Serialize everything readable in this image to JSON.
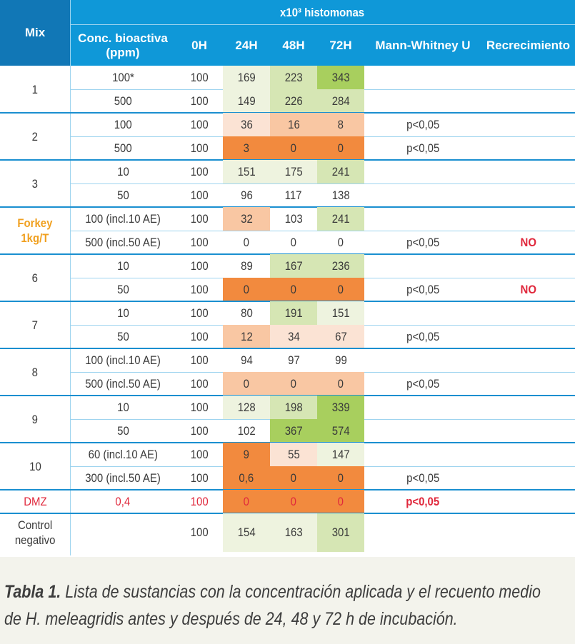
{
  "header": {
    "group_title": "x10³ histomonas",
    "columns": [
      "Mix",
      "Conc. bioactiva\n(ppm)",
      "0H",
      "24H",
      "48H",
      "72H",
      "Mann-Whitney U",
      "Recrecimiento"
    ]
  },
  "colors": {
    "header_blue": "#0f98d8",
    "header_dark_blue": "#1177b6",
    "green_light": "#eef3df",
    "green_mid": "#d6e6b4",
    "green_strong": "#a8cf5e",
    "orange_light": "#fbe3d4",
    "orange_mid": "#f9c7a3",
    "orange_strong": "#f28a3e",
    "red_text": "#e0283c",
    "orange_text": "#f0a020"
  },
  "groups": [
    {
      "mix": "1",
      "rows": [
        {
          "conc": "100*",
          "h0": "100",
          "h24": "169",
          "h48": "223",
          "h72": "343",
          "mw": "",
          "rec": ""
        },
        {
          "conc": "500",
          "h0": "100",
          "h24": "149",
          "h48": "226",
          "h72": "284",
          "mw": "",
          "rec": ""
        }
      ]
    },
    {
      "mix": "2",
      "rows": [
        {
          "conc": "100",
          "h0": "100",
          "h24": "36",
          "h48": "16",
          "h72": "8",
          "mw": "p<0,05",
          "rec": ""
        },
        {
          "conc": "500",
          "h0": "100",
          "h24": "3",
          "h48": "0",
          "h72": "0",
          "mw": "p<0,05",
          "rec": ""
        }
      ]
    },
    {
      "mix": "3",
      "rows": [
        {
          "conc": "10",
          "h0": "100",
          "h24": "151",
          "h48": "175",
          "h72": "241",
          "mw": "",
          "rec": ""
        },
        {
          "conc": "50",
          "h0": "100",
          "h24": "96",
          "h48": "117",
          "h72": "138",
          "mw": "",
          "rec": ""
        }
      ]
    },
    {
      "mix": "Forkey\n1kg/T",
      "rows": [
        {
          "conc": "100 (incl.10 AE)",
          "h0": "100",
          "h24": "32",
          "h48": "103",
          "h72": "241",
          "mw": "",
          "rec": ""
        },
        {
          "conc": "500 (incl.50 AE)",
          "h0": "100",
          "h24": "0",
          "h48": "0",
          "h72": "0",
          "mw": "p<0,05",
          "rec": "NO"
        }
      ]
    },
    {
      "mix": "6",
      "rows": [
        {
          "conc": "10",
          "h0": "100",
          "h24": "89",
          "h48": "167",
          "h72": "236",
          "mw": "",
          "rec": ""
        },
        {
          "conc": "50",
          "h0": "100",
          "h24": "0",
          "h48": "0",
          "h72": "0",
          "mw": "p<0,05",
          "rec": "NO"
        }
      ]
    },
    {
      "mix": "7",
      "rows": [
        {
          "conc": "10",
          "h0": "100",
          "h24": "80",
          "h48": "191",
          "h72": "151",
          "mw": "",
          "rec": ""
        },
        {
          "conc": "50",
          "h0": "100",
          "h24": "12",
          "h48": "34",
          "h72": "67",
          "mw": "p<0,05",
          "rec": ""
        }
      ]
    },
    {
      "mix": "8",
      "rows": [
        {
          "conc": "100 (incl.10 AE)",
          "h0": "100",
          "h24": "94",
          "h48": "97",
          "h72": "99",
          "mw": "",
          "rec": ""
        },
        {
          "conc": "500 (incl.50 AE)",
          "h0": "100",
          "h24": "0",
          "h48": "0",
          "h72": "0",
          "mw": "p<0,05",
          "rec": ""
        }
      ]
    },
    {
      "mix": "9",
      "rows": [
        {
          "conc": "10",
          "h0": "100",
          "h24": "128",
          "h48": "198",
          "h72": "339",
          "mw": "",
          "rec": ""
        },
        {
          "conc": "50",
          "h0": "100",
          "h24": "102",
          "h48": "367",
          "h72": "574",
          "mw": "",
          "rec": ""
        }
      ]
    },
    {
      "mix": "10",
      "rows": [
        {
          "conc": "60 (incl.10 AE)",
          "h0": "100",
          "h24": "9",
          "h48": "55",
          "h72": "147",
          "mw": "",
          "rec": ""
        },
        {
          "conc": "300 (incl.50 AE)",
          "h0": "100",
          "h24": "0,6",
          "h48": "0",
          "h72": "0",
          "mw": "p<0,05",
          "rec": ""
        }
      ]
    },
    {
      "mix": "DMZ",
      "rows": [
        {
          "conc": "0,4",
          "h0": "100",
          "h24": "0",
          "h48": "0",
          "h72": "0",
          "mw": "p<0,05",
          "rec": ""
        }
      ]
    },
    {
      "mix": "Control\nnegativo",
      "rows": [
        {
          "conc": "",
          "h0": "100",
          "h24": "154",
          "h48": "163",
          "h72": "301",
          "mw": "",
          "rec": ""
        }
      ]
    }
  ],
  "caption": {
    "bold": "Tabla 1.",
    "text": " Lista de sustancias con la concentración aplicada y el recuento medio",
    "line2": "de H. meleagridis antes y después de 24, 48 y 72 h de incubación."
  }
}
